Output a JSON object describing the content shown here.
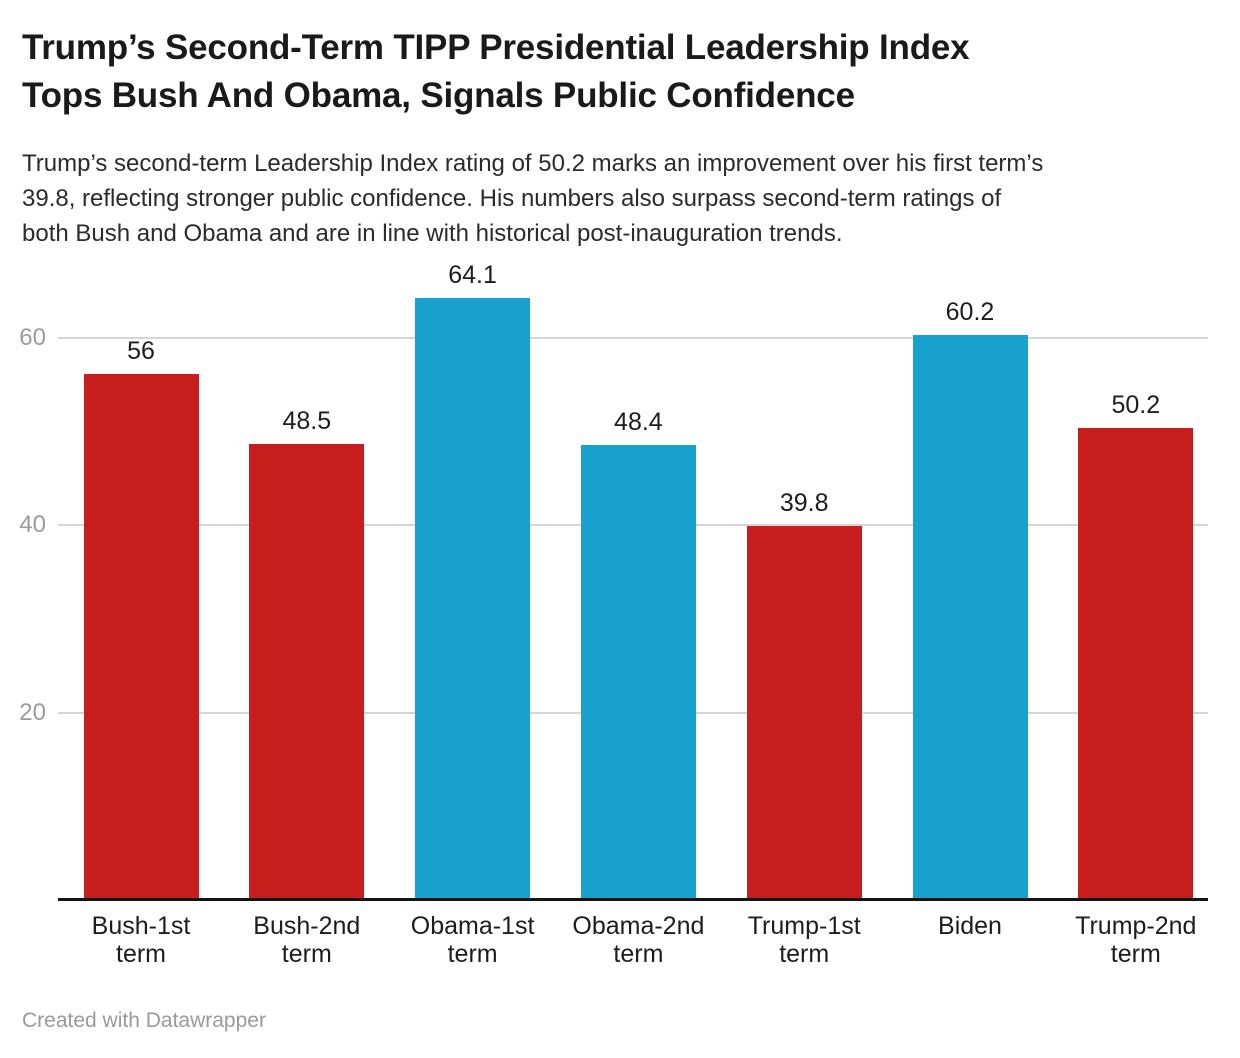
{
  "header": {
    "title_line1": "Trump’s Second-Term TIPP Presidential Leadership Index",
    "title_line2": "Tops Bush And Obama, Signals Public Confidence",
    "subtitle_line1": "Trump’s second-term Leadership Index rating of 50.2 marks an improvement over his first term’s",
    "subtitle_line2": "39.8, reflecting stronger public confidence. His numbers also surpass second-term ratings of",
    "subtitle_line3": "both Bush and Obama and are in line with historical post-inauguration trends."
  },
  "footer": {
    "credit": "Created with Datawrapper"
  },
  "chart_data": {
    "type": "bar",
    "title": "Trump’s Second-Term TIPP Presidential Leadership Index Tops Bush And Obama, Signals Public Confidence",
    "subtitle": "Trump’s second-term Leadership Index rating of 50.2 marks an improvement over his first term’s 39.8, reflecting stronger public confidence. His numbers also surpass second-term ratings of both Bush and Obama and are in line with historical post-inauguration trends.",
    "categories": [
      "Bush-1st term",
      "Bush-2nd term",
      "Obama-1st term",
      "Obama-2nd term",
      "Trump-1st term",
      "Biden",
      "Trump-2nd term"
    ],
    "values": [
      56,
      48.5,
      64.1,
      48.4,
      39.8,
      60.2,
      50.2
    ],
    "bar_colors": [
      "#c71e1d",
      "#c71e1d",
      "#18a1cd",
      "#18a1cd",
      "#c71e1d",
      "#18a1cd",
      "#c71e1d"
    ],
    "yticks": [
      20,
      40,
      60
    ],
    "ylim": [
      0,
      67
    ],
    "xlabel": "",
    "ylabel": "",
    "grid": "horizontal",
    "legend": "none",
    "value_labels_shown": true,
    "colors": {
      "red": "#c71e1d",
      "blue": "#18a1cd",
      "gridline": "#d5d5d5",
      "axis_tick_text": "#9b9b9b",
      "baseline": "#141414",
      "label_text": "#1d1d1d"
    }
  }
}
